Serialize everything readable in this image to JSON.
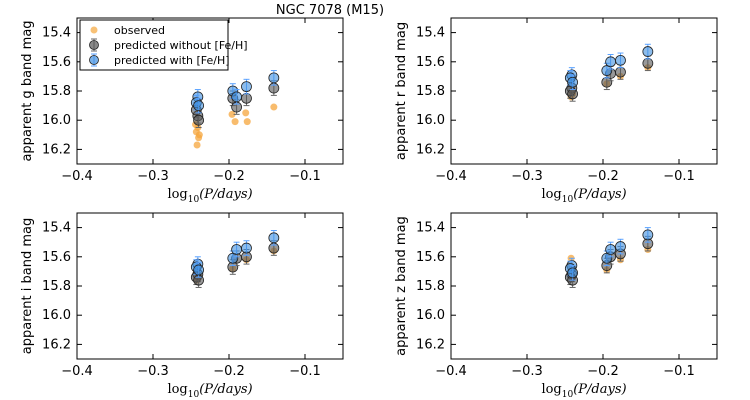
{
  "figure_title": "NGC 7078 (M15)",
  "legend": {
    "observed": "observed",
    "predicted_without": "predicted without [Fe/H]",
    "predicted_with": "predicted with [Fe/H]"
  },
  "colors": {
    "observed": "#f5a63c",
    "predicted_without": "#555555",
    "predicted_with": "#3f8fe0",
    "error_without": "#666666",
    "error_with": "#5aa2ff"
  },
  "chart_data": [
    {
      "type": "scatter",
      "band": "g",
      "ylabel": "apparent g band mag",
      "xlabel": "log10(P/days)",
      "xlim": [
        -0.4,
        -0.05
      ],
      "ylim": [
        16.3,
        15.3
      ],
      "xticks": [
        -0.4,
        -0.3,
        -0.2,
        -0.1
      ],
      "yticks": [
        15.4,
        15.6,
        15.8,
        16.0,
        16.2
      ],
      "series": [
        {
          "name": "observed",
          "x": [
            -0.242,
            -0.24,
            -0.243,
            -0.241,
            -0.239,
            -0.244,
            -0.241,
            -0.196,
            -0.192,
            -0.178,
            -0.176,
            -0.141
          ],
          "y": [
            16.17,
            16.12,
            16.08,
            16.05,
            16.1,
            16.03,
            15.92,
            15.96,
            16.01,
            15.95,
            16.01,
            15.91
          ]
        },
        {
          "name": "predicted without [Fe/H]",
          "x": [
            -0.241,
            -0.243,
            -0.24,
            -0.195,
            -0.19,
            -0.177,
            -0.141
          ],
          "y": [
            15.97,
            15.93,
            16.0,
            15.85,
            15.91,
            15.85,
            15.78
          ],
          "err": [
            0.05,
            0.05,
            0.05,
            0.05,
            0.05,
            0.05,
            0.05
          ]
        },
        {
          "name": "predicted with [Fe/H]",
          "x": [
            -0.241,
            -0.243,
            -0.24,
            -0.195,
            -0.19,
            -0.177,
            -0.141
          ],
          "y": [
            15.84,
            15.88,
            15.9,
            15.8,
            15.84,
            15.77,
            15.71
          ],
          "err": [
            0.05,
            0.05,
            0.05,
            0.05,
            0.05,
            0.05,
            0.05
          ]
        }
      ]
    },
    {
      "type": "scatter",
      "band": "r",
      "ylabel": "apparent r band mag",
      "xlabel": "log10(P/days)",
      "xlim": [
        -0.4,
        -0.05
      ],
      "ylim": [
        16.3,
        15.3
      ],
      "xticks": [
        -0.4,
        -0.3,
        -0.2,
        -0.1
      ],
      "yticks": [
        15.4,
        15.6,
        15.8,
        16.0,
        16.2
      ],
      "series": [
        {
          "name": "observed",
          "x": [
            -0.242,
            -0.24,
            -0.241,
            -0.195,
            -0.177,
            -0.141
          ],
          "y": [
            15.84,
            15.82,
            15.81,
            15.75,
            15.7,
            15.64
          ]
        },
        {
          "name": "predicted without [Fe/H]",
          "x": [
            -0.241,
            -0.243,
            -0.24,
            -0.195,
            -0.19,
            -0.177,
            -0.141
          ],
          "y": [
            15.78,
            15.8,
            15.82,
            15.74,
            15.68,
            15.67,
            15.61
          ],
          "err": [
            0.05,
            0.05,
            0.05,
            0.05,
            0.05,
            0.05,
            0.05
          ]
        },
        {
          "name": "predicted with [Fe/H]",
          "x": [
            -0.241,
            -0.243,
            -0.24,
            -0.195,
            -0.19,
            -0.177,
            -0.141
          ],
          "y": [
            15.69,
            15.71,
            15.74,
            15.66,
            15.6,
            15.59,
            15.53
          ],
          "err": [
            0.05,
            0.05,
            0.05,
            0.05,
            0.05,
            0.05,
            0.05
          ]
        }
      ]
    },
    {
      "type": "scatter",
      "band": "i",
      "ylabel": "apparent i band mag",
      "xlabel": "log10(P/days)",
      "xlim": [
        -0.4,
        -0.05
      ],
      "ylim": [
        16.3,
        15.3
      ],
      "xticks": [
        -0.4,
        -0.3,
        -0.2,
        -0.1
      ],
      "yticks": [
        15.4,
        15.6,
        15.8,
        16.0,
        16.2
      ],
      "series": [
        {
          "name": "observed",
          "x": [
            -0.242,
            -0.24,
            -0.195,
            -0.177,
            -0.141
          ],
          "y": [
            15.76,
            15.74,
            15.68,
            15.62,
            15.56
          ]
        },
        {
          "name": "predicted without [Fe/H]",
          "x": [
            -0.241,
            -0.243,
            -0.24,
            -0.195,
            -0.19,
            -0.177,
            -0.141
          ],
          "y": [
            15.72,
            15.74,
            15.76,
            15.67,
            15.61,
            15.6,
            15.54
          ],
          "err": [
            0.05,
            0.05,
            0.05,
            0.05,
            0.05,
            0.05,
            0.05
          ]
        },
        {
          "name": "predicted with [Fe/H]",
          "x": [
            -0.241,
            -0.243,
            -0.24,
            -0.195,
            -0.19,
            -0.177,
            -0.141
          ],
          "y": [
            15.65,
            15.67,
            15.69,
            15.61,
            15.55,
            15.54,
            15.47
          ],
          "err": [
            0.05,
            0.05,
            0.05,
            0.05,
            0.05,
            0.05,
            0.05
          ]
        }
      ]
    },
    {
      "type": "scatter",
      "band": "z",
      "ylabel": "apparent z band mag",
      "xlabel": "log10(P/days)",
      "xlim": [
        -0.4,
        -0.05
      ],
      "ylim": [
        16.3,
        15.3
      ],
      "xticks": [
        -0.4,
        -0.3,
        -0.2,
        -0.1
      ],
      "yticks": [
        15.4,
        15.6,
        15.8,
        16.0,
        16.2
      ],
      "series": [
        {
          "name": "observed",
          "x": [
            -0.242,
            -0.243,
            -0.24,
            -0.195,
            -0.177,
            -0.141
          ],
          "y": [
            15.61,
            15.66,
            15.74,
            15.69,
            15.62,
            15.55
          ]
        },
        {
          "name": "predicted without [Fe/H]",
          "x": [
            -0.241,
            -0.243,
            -0.24,
            -0.195,
            -0.19,
            -0.177,
            -0.141
          ],
          "y": [
            15.72,
            15.74,
            15.76,
            15.66,
            15.6,
            15.58,
            15.51
          ],
          "err": [
            0.05,
            0.05,
            0.05,
            0.05,
            0.05,
            0.05,
            0.05
          ]
        },
        {
          "name": "predicted with [Fe/H]",
          "x": [
            -0.241,
            -0.243,
            -0.24,
            -0.195,
            -0.19,
            -0.177,
            -0.141
          ],
          "y": [
            15.66,
            15.68,
            15.71,
            15.61,
            15.55,
            15.53,
            15.45
          ],
          "err": [
            0.05,
            0.05,
            0.05,
            0.05,
            0.05,
            0.05,
            0.05
          ]
        }
      ]
    }
  ]
}
